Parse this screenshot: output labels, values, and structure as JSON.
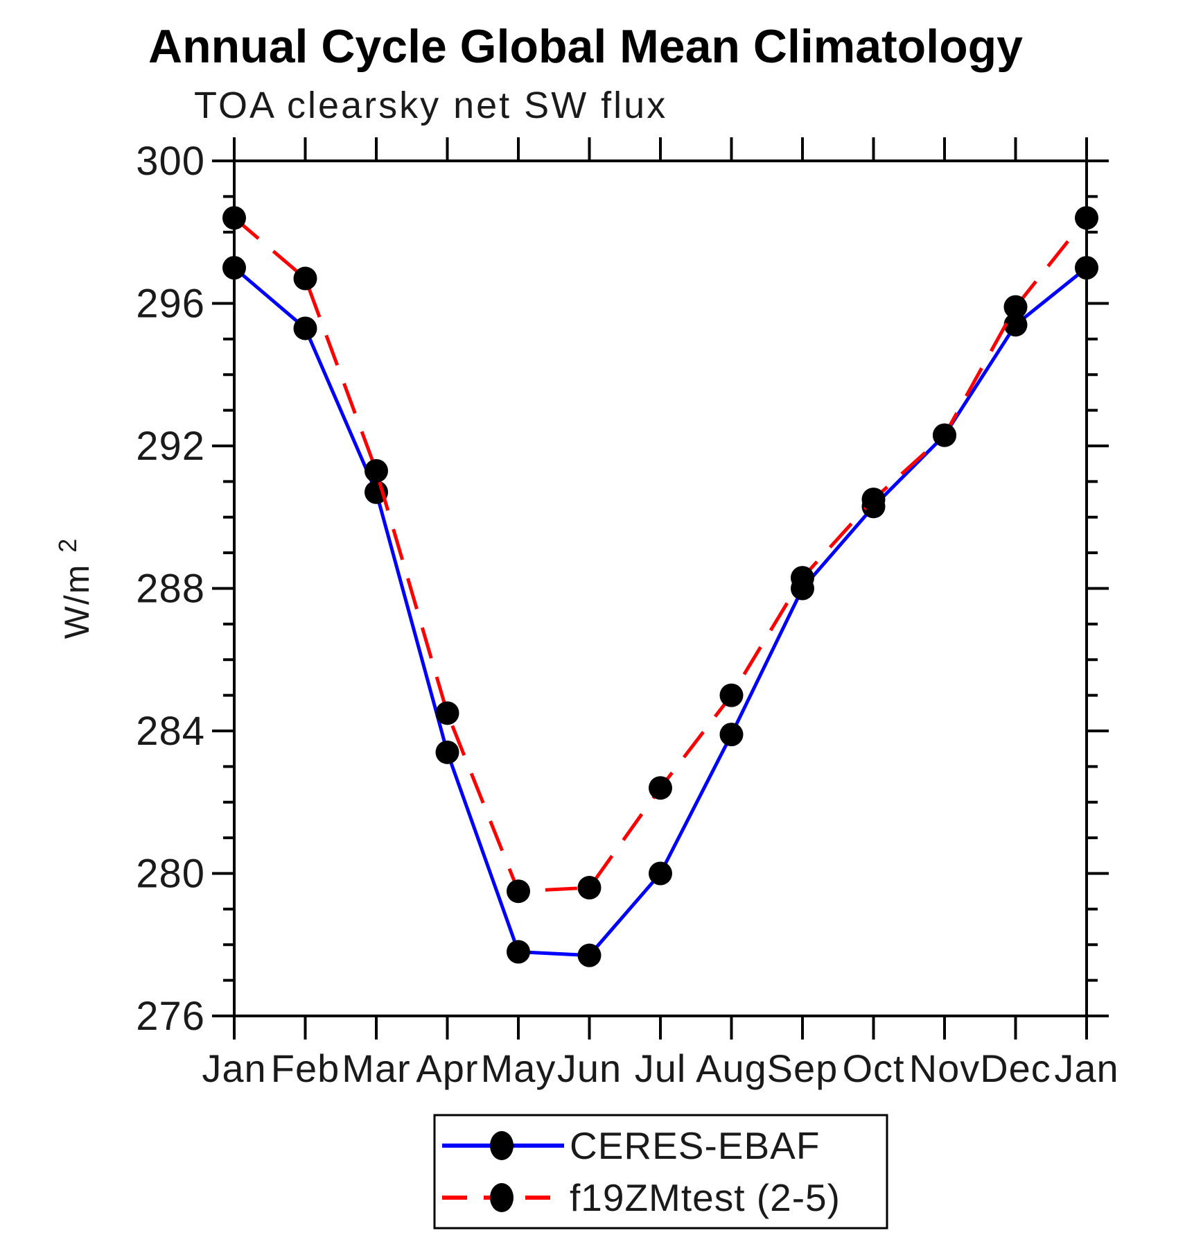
{
  "chart_data": {
    "type": "line",
    "title": "Annual Cycle Global Mean Climatology",
    "subtitle": "TOA clearsky net SW flux",
    "ylabel_base": "W/m",
    "ylabel_sup": "2",
    "x_categories": [
      "Jan",
      "Feb",
      "Mar",
      "Apr",
      "May",
      "Jun",
      "Jul",
      "Aug",
      "Sep",
      "Oct",
      "Nov",
      "Dec",
      "Jan"
    ],
    "ylim": [
      276,
      300
    ],
    "y_major_ticks": [
      276,
      280,
      284,
      288,
      292,
      296,
      300
    ],
    "y_minor_step": 1,
    "grid": false,
    "legend_position": "bottom-center",
    "marker": "filled-circle",
    "marker_color": "#000000",
    "axis_color": "#000000",
    "series": [
      {
        "name": "CERES-EBAF",
        "color": "#0000ff",
        "style": "solid",
        "values": [
          297.0,
          295.3,
          290.7,
          283.4,
          277.8,
          277.7,
          280.0,
          283.9,
          288.0,
          290.3,
          292.3,
          295.4,
          297.0
        ]
      },
      {
        "name": "f19ZMtest (2-5)",
        "color": "#ff0000",
        "style": "dashed",
        "values": [
          298.4,
          296.7,
          291.3,
          284.5,
          279.5,
          279.6,
          282.4,
          285.0,
          288.3,
          290.5,
          292.3,
          295.9,
          298.4
        ]
      }
    ]
  }
}
